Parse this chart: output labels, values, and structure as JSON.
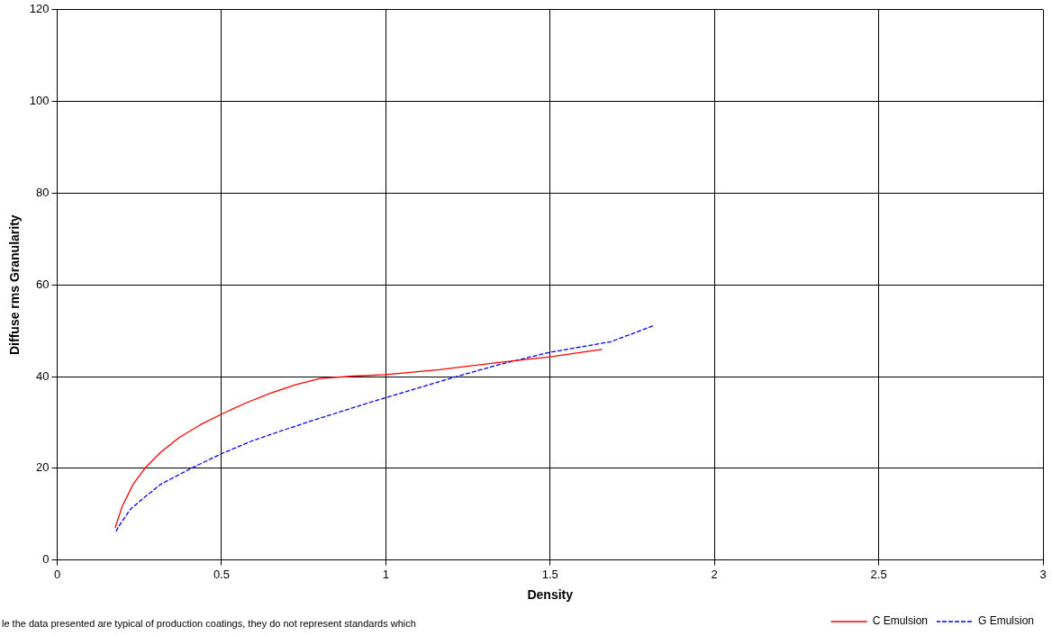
{
  "chart_data": {
    "type": "line",
    "xlabel": "Density",
    "ylabel": "Diffuse rms Granularity",
    "xlim": [
      0,
      3
    ],
    "xticks": [
      0,
      0.5,
      1,
      1.5,
      2,
      2.5,
      3
    ],
    "ylim": [
      0,
      120
    ],
    "yticks": [
      0,
      20,
      40,
      60,
      80,
      100,
      120
    ],
    "grid": true,
    "legend": "bottom right",
    "marker": "none",
    "series": [
      {
        "name": "C Emulsion",
        "color": "#ff0000",
        "line_style": "solid",
        "x": [
          0.177,
          0.185,
          0.198,
          0.231,
          0.268,
          0.315,
          0.371,
          0.436,
          0.5,
          0.576,
          0.65,
          0.725,
          0.8,
          0.9,
          1.0,
          1.163,
          1.35,
          1.5,
          1.657
        ],
        "values": [
          7.1,
          8.9,
          11.7,
          16.5,
          20.1,
          23.5,
          26.7,
          29.5,
          31.8,
          34.3,
          36.4,
          38.2,
          39.6,
          40.1,
          40.4,
          41.5,
          43.1,
          44.3,
          45.9
        ]
      },
      {
        "name": "G Emulsion",
        "color": "#0000ff",
        "line_style": "dashed",
        "x": [
          0.18,
          0.185,
          0.222,
          0.268,
          0.315,
          0.408,
          0.501,
          0.594,
          0.688,
          0.781,
          0.874,
          0.958,
          1.0,
          1.21,
          1.35,
          1.5,
          1.685,
          1.815
        ],
        "values": [
          6.3,
          7.1,
          11,
          13.8,
          16.5,
          20,
          23.2,
          26,
          28.3,
          30.5,
          32.6,
          34.5,
          35.4,
          39.9,
          42.7,
          45.3,
          47.6,
          51.1
        ]
      }
    ],
    "annotations": [
      "le the data presented are typical of production coatings, they do not represent standards which"
    ]
  }
}
